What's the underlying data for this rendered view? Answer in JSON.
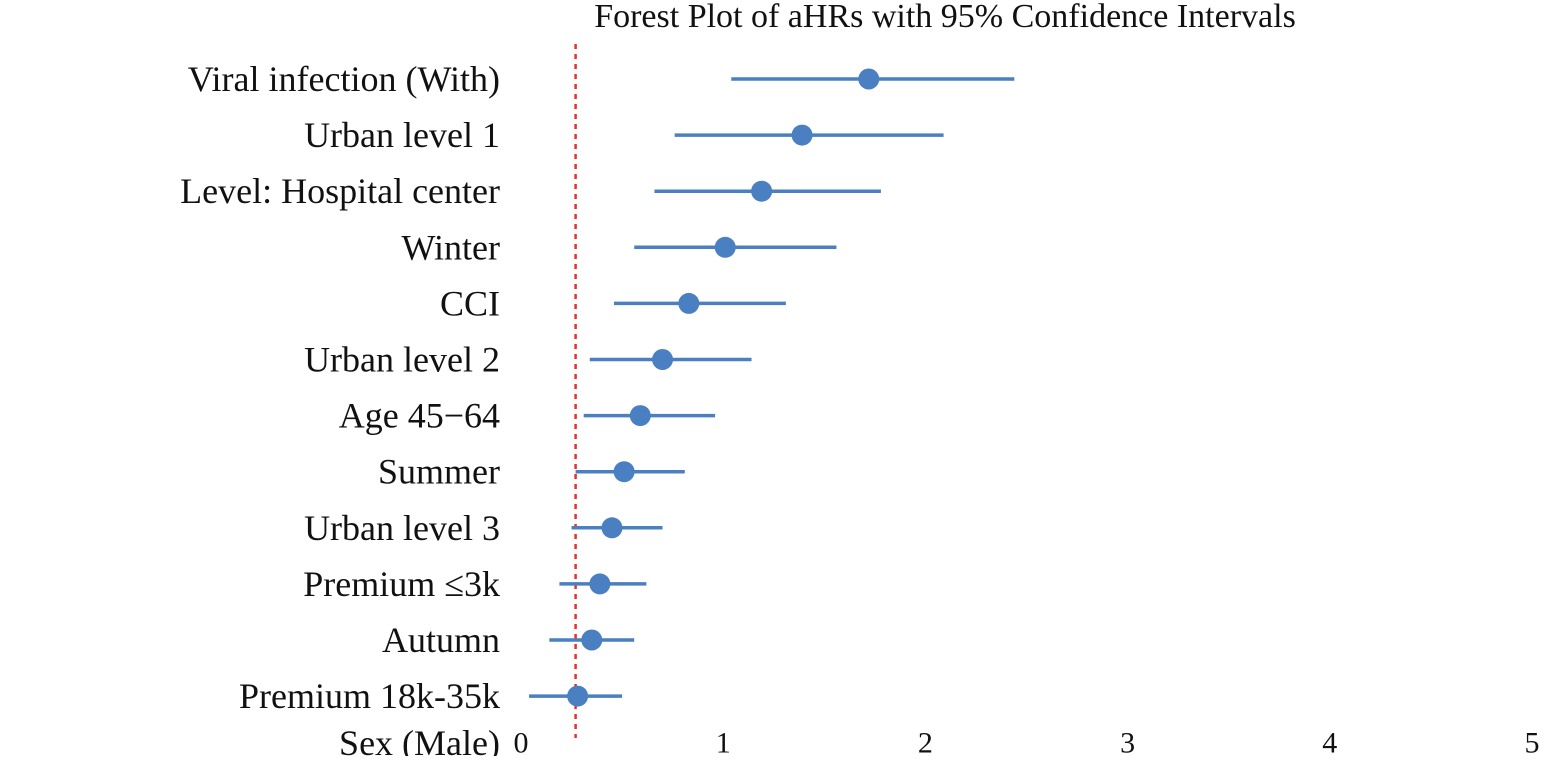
{
  "chart_data": {
    "type": "forest",
    "title": "Forest Plot of aHRs with 95% Confidence Intervals",
    "xlabel": "",
    "ylabel": "",
    "xlim": [
      0,
      5
    ],
    "x_ticks": [
      "0",
      "1",
      "2",
      "3",
      "4",
      "5"
    ],
    "grid": false,
    "reference_line": {
      "x": 0.27,
      "style": "dotted",
      "color": "#e8302c"
    },
    "colors": {
      "point": "#4a7fc1",
      "line": "#4a7fc1"
    },
    "rows": [
      {
        "label": "Viral infection (With)",
        "estimate": 1.72,
        "lower": 1.04,
        "upper": 2.44
      },
      {
        "label": "Urban level 1",
        "estimate": 1.39,
        "lower": 0.76,
        "upper": 2.09
      },
      {
        "label": "Level: Hospital center",
        "estimate": 1.19,
        "lower": 0.66,
        "upper": 1.78
      },
      {
        "label": "Winter",
        "estimate": 1.01,
        "lower": 0.56,
        "upper": 1.56
      },
      {
        "label": "CCI",
        "estimate": 0.83,
        "lower": 0.46,
        "upper": 1.31
      },
      {
        "label": "Urban level 2",
        "estimate": 0.7,
        "lower": 0.34,
        "upper": 1.14
      },
      {
        "label": "Age 45−64",
        "estimate": 0.59,
        "lower": 0.31,
        "upper": 0.96
      },
      {
        "label": "Summer",
        "estimate": 0.51,
        "lower": 0.27,
        "upper": 0.81
      },
      {
        "label": "Urban level 3",
        "estimate": 0.45,
        "lower": 0.25,
        "upper": 0.7
      },
      {
        "label": "Premium ≤3k",
        "estimate": 0.39,
        "lower": 0.19,
        "upper": 0.62
      },
      {
        "label": "Autumn",
        "estimate": 0.35,
        "lower": 0.14,
        "upper": 0.56
      },
      {
        "label": "Premium 18k-35k",
        "estimate": 0.28,
        "lower": 0.04,
        "upper": 0.5
      },
      {
        "label": "Sex (Male)",
        "estimate": null,
        "lower": null,
        "upper": null
      }
    ]
  }
}
